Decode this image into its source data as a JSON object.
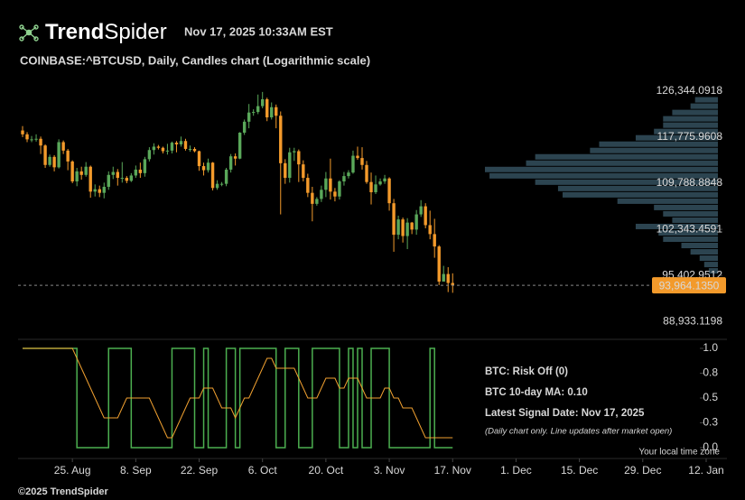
{
  "header": {
    "brand_bold": "Trend",
    "brand_light": "Spider",
    "timestamp": "Nov 17, 2025 10:33AM EST",
    "footer": "©2025 TrendSpider"
  },
  "chart_data": [
    {
      "type": "candlestick",
      "title": "COINBASE:^BTCUSD, Daily, Candles chart (Logarithmic scale)",
      "log_scale": true,
      "up_color": "#5aa85a",
      "down_color": "#f39a2b",
      "xlim": [
        -1,
        152
      ],
      "ylim": [
        87250,
        127400
      ],
      "yticks": [
        {
          "value": 126344.0918,
          "label": "126,344.0918"
        },
        {
          "value": 117775.9608,
          "label": "117,775.9608"
        },
        {
          "value": 109788.8848,
          "label": "109,788.8848"
        },
        {
          "value": 102343.4591,
          "label": "102,343.4591"
        },
        {
          "value": 95402.9512,
          "label": "95,402.9512"
        },
        {
          "value": 88933.1198,
          "label": "88,933.1198"
        }
      ],
      "last_price": {
        "value": 93964.135,
        "label": "93,964.1350",
        "color": "#f39a2b"
      },
      "open": [
        119000,
        118300,
        117400,
        117400,
        117500,
        116300,
        112900,
        114300,
        112500,
        116900,
        115400,
        113500,
        110100,
        111800,
        111200,
        112600,
        108400,
        108800,
        108200,
        109200,
        111200,
        111700,
        110700,
        110700,
        110200,
        111100,
        112100,
        111500,
        113900,
        115500,
        116100,
        115900,
        115300,
        115400,
        116800,
        116500,
        117100,
        115700,
        115700,
        115300,
        112700,
        112000,
        113300,
        109000,
        109700,
        109700,
        112100,
        114400,
        114000,
        118600,
        120600,
        122300,
        122400,
        123500,
        124800,
        121400,
        123300,
        121700,
        113200,
        110700,
        115100,
        115300,
        113000,
        110700,
        108200,
        106400,
        107200,
        108700,
        110600,
        108400,
        107600,
        110100,
        111000,
        111600,
        114500,
        114100,
        112900,
        110000,
        108300,
        109600,
        110100,
        110600,
        106500,
        101500,
        103900,
        101300,
        103400,
        102300,
        104700,
        106000,
        103000,
        101600,
        99700,
        94500,
        95600,
        94300
      ],
      "high": [
        119800,
        118700,
        118000,
        118300,
        117900,
        116500,
        114700,
        114600,
        117400,
        117200,
        115700,
        113700,
        112400,
        112600,
        113400,
        112800,
        109600,
        109400,
        109900,
        111800,
        112600,
        112200,
        113400,
        111000,
        111500,
        112800,
        113300,
        114300,
        116000,
        116700,
        116400,
        116100,
        116600,
        117000,
        117100,
        117900,
        117500,
        116300,
        116000,
        115400,
        113300,
        114000,
        113400,
        110300,
        110000,
        112400,
        114800,
        114900,
        118700,
        121000,
        123900,
        122900,
        125700,
        126200,
        125100,
        124200,
        123800,
        122500,
        113900,
        115900,
        115900,
        115600,
        113700,
        111400,
        109200,
        107500,
        109400,
        111700,
        114000,
        109000,
        110300,
        111700,
        112000,
        115400,
        116100,
        116000,
        113600,
        111600,
        111100,
        110600,
        111200,
        110800,
        107200,
        104500,
        104200,
        104100,
        103500,
        105400,
        107000,
        106500,
        105300,
        104000,
        99900,
        96800,
        96600,
        95700
      ],
      "low": [
        117800,
        116900,
        116900,
        117000,
        114800,
        112400,
        112600,
        111800,
        112300,
        114800,
        112000,
        109800,
        109300,
        110400,
        110900,
        107400,
        107600,
        107500,
        107300,
        108700,
        110500,
        109400,
        109900,
        109800,
        110000,
        110700,
        110700,
        110900,
        113500,
        114700,
        115600,
        114900,
        114700,
        114900,
        115100,
        116100,
        115400,
        115200,
        115100,
        111900,
        111100,
        111600,
        108600,
        108700,
        109300,
        109300,
        111600,
        112800,
        113900,
        118200,
        119400,
        121700,
        122000,
        123100,
        120700,
        121000,
        119400,
        104700,
        109700,
        109900,
        113600,
        110000,
        110100,
        107500,
        103600,
        106100,
        106700,
        107500,
        107100,
        106800,
        107100,
        109400,
        110600,
        111400,
        113800,
        112100,
        109700,
        106300,
        108000,
        109400,
        109700,
        105300,
        98900,
        100800,
        100300,
        99300,
        101600,
        101500,
        104300,
        102500,
        100800,
        98000,
        94000,
        94500,
        93000,
        92900
      ],
      "close": [
        118300,
        117400,
        117400,
        117500,
        116300,
        112900,
        114300,
        112500,
        116900,
        115400,
        113500,
        110100,
        111800,
        111200,
        112600,
        108400,
        108800,
        108200,
        109200,
        111200,
        111700,
        110700,
        110700,
        110200,
        111100,
        112100,
        111500,
        113900,
        115500,
        116100,
        115900,
        115300,
        115400,
        116800,
        116500,
        117100,
        115700,
        115700,
        115300,
        112700,
        112000,
        113300,
        109000,
        109700,
        109700,
        112100,
        114400,
        114000,
        118600,
        120600,
        122300,
        122400,
        123500,
        124800,
        121400,
        123300,
        121700,
        113200,
        110700,
        115100,
        115300,
        113000,
        110700,
        108200,
        106400,
        107200,
        108700,
        110600,
        108400,
        107600,
        110100,
        111000,
        111600,
        114500,
        114100,
        112900,
        110000,
        108300,
        109600,
        110100,
        110600,
        106500,
        101500,
        103900,
        101300,
        103400,
        102300,
        104700,
        106000,
        103000,
        101600,
        99700,
        94500,
        95600,
        94300,
        93964
      ],
      "volume_profile": {
        "color": "#2c4450",
        "range": [
          95600,
          125300
        ],
        "values": [
          25,
          30,
          50,
          60,
          60,
          70,
          90,
          130,
          140,
          200,
          210,
          255,
          250,
          200,
          175,
          170,
          110,
          70,
          60,
          50,
          90,
          65,
          60,
          40,
          30,
          20,
          15,
          10
        ]
      }
    },
    {
      "type": "line",
      "ylim": [
        0,
        1
      ],
      "yticks": [
        {
          "value": 1,
          "label": "1.0"
        },
        {
          "value": 0.75,
          "label": "0.8"
        },
        {
          "value": 0.5,
          "label": "0.5"
        },
        {
          "value": 0.25,
          "label": "0.3"
        },
        {
          "value": 0,
          "label": "0.0"
        }
      ],
      "xticks": [
        {
          "value": 11,
          "label": "25. Aug"
        },
        {
          "value": 25,
          "label": "8. Sep"
        },
        {
          "value": 39,
          "label": "22. Sep"
        },
        {
          "value": 53,
          "label": "6. Oct"
        },
        {
          "value": 67,
          "label": "20. Oct"
        },
        {
          "value": 81,
          "label": "3. Nov"
        },
        {
          "value": 95,
          "label": "17. Nov"
        },
        {
          "value": 109,
          "label": "1. Dec"
        },
        {
          "value": 123,
          "label": "15. Dec"
        },
        {
          "value": 137,
          "label": "29. Dec"
        },
        {
          "value": 151,
          "label": "12. Jan"
        }
      ],
      "series": [
        {
          "name": "BTC: Risk Off (0)",
          "color": "#4caf50",
          "step": true,
          "values": [
            1,
            1,
            1,
            1,
            1,
            1,
            1,
            1,
            1,
            1,
            1,
            1,
            0,
            0,
            0,
            0,
            0,
            0,
            0,
            1,
            1,
            1,
            1,
            1,
            0,
            0,
            0,
            0,
            0,
            0,
            0,
            0,
            0,
            1,
            1,
            1,
            1,
            1,
            0,
            0,
            1,
            0,
            0,
            0,
            0,
            1,
            1,
            0,
            1,
            1,
            1,
            1,
            1,
            1,
            1,
            1,
            0,
            0,
            1,
            1,
            1,
            0,
            0,
            0,
            1,
            1,
            1,
            1,
            1,
            1,
            0,
            0,
            1,
            0,
            1,
            0,
            0,
            1,
            1,
            1,
            1,
            0,
            0,
            0,
            0,
            0,
            0,
            0,
            0,
            0,
            1,
            0,
            0,
            0,
            0,
            0
          ]
        },
        {
          "name": "BTC 10-day MA: 0.10",
          "color": "#f0a030",
          "step": false,
          "values": [
            1,
            1,
            1,
            1,
            1,
            1,
            1,
            1,
            1,
            1,
            1,
            1,
            0.9,
            0.8,
            0.7,
            0.6,
            0.5,
            0.4,
            0.3,
            0.3,
            0.3,
            0.3,
            0.4,
            0.5,
            0.5,
            0.5,
            0.5,
            0.5,
            0.5,
            0.4,
            0.3,
            0.2,
            0.1,
            0.1,
            0.2,
            0.3,
            0.4,
            0.5,
            0.5,
            0.5,
            0.6,
            0.6,
            0.6,
            0.5,
            0.4,
            0.4,
            0.4,
            0.3,
            0.4,
            0.5,
            0.5,
            0.6,
            0.7,
            0.8,
            0.9,
            0.9,
            0.8,
            0.8,
            0.8,
            0.8,
            0.8,
            0.7,
            0.6,
            0.5,
            0.5,
            0.5,
            0.6,
            0.7,
            0.7,
            0.7,
            0.6,
            0.6,
            0.7,
            0.7,
            0.7,
            0.6,
            0.5,
            0.5,
            0.5,
            0.5,
            0.6,
            0.6,
            0.5,
            0.5,
            0.4,
            0.4,
            0.4,
            0.3,
            0.2,
            0.1,
            0.1,
            0.1,
            0.1,
            0.1,
            0.1,
            0.1
          ]
        }
      ],
      "annotations": [
        {
          "text": "Latest Signal Date: Nov 17, 2025",
          "color": "#e8504a",
          "style": "bold"
        },
        {
          "text": "(Daily chart only. Line updates after market open)",
          "color": "#e8504a",
          "style": "italic"
        }
      ],
      "timezone_note": "Your local time zone"
    }
  ]
}
